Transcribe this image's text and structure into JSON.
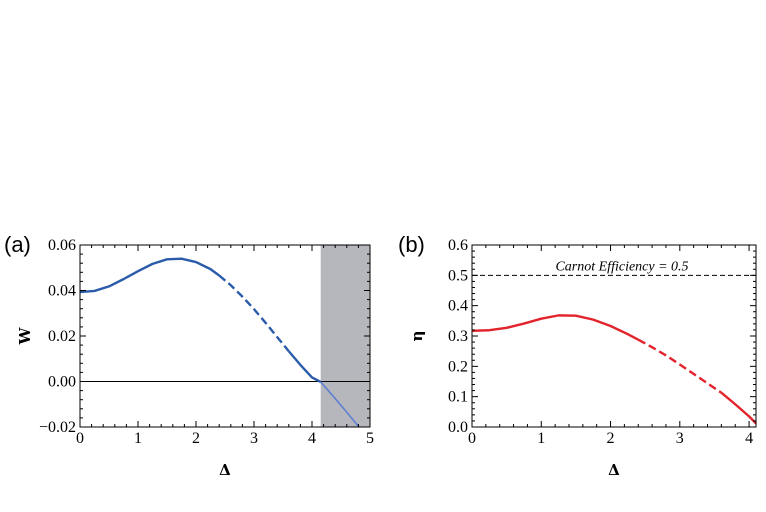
{
  "panels": {
    "a": {
      "label": "(a)"
    },
    "b": {
      "label": "(b)"
    }
  },
  "chart_data": [
    {
      "type": "line",
      "xlabel": "Δ",
      "ylabel": "W",
      "xlim": [
        0,
        5
      ],
      "ylim": [
        -0.02,
        0.06
      ],
      "xticks": [
        0,
        1,
        2,
        3,
        4,
        5
      ],
      "yticks": [
        -0.02,
        0.0,
        0.02,
        0.04,
        0.06
      ],
      "ytick_labels": [
        "−0.02",
        "0.00",
        "0.02",
        "0.04",
        "0.06"
      ],
      "grid": false,
      "color": "#2a5caa",
      "zero_line": 0.0,
      "shaded_region": {
        "x0": 4.15,
        "x1": 5.0,
        "color": "#b6b7bd"
      },
      "series": [
        {
          "style": "solid",
          "x": [
            0,
            0.25,
            0.5,
            0.75,
            1.0,
            1.25,
            1.5,
            1.75,
            2.0,
            2.25,
            2.4
          ],
          "y": [
            0.0393,
            0.0398,
            0.0418,
            0.045,
            0.0485,
            0.0517,
            0.0537,
            0.054,
            0.0525,
            0.0494,
            0.0466
          ]
        },
        {
          "style": "dashed",
          "x": [
            2.4,
            2.6,
            2.8,
            3.0,
            3.2,
            3.4,
            3.6
          ],
          "y": [
            0.0466,
            0.0423,
            0.0373,
            0.0318,
            0.0258,
            0.0195,
            0.0133
          ]
        },
        {
          "style": "solid",
          "x": [
            3.6,
            3.8,
            4.0,
            4.15
          ],
          "y": [
            0.0133,
            0.0073,
            0.0018,
            -0.0002
          ]
        },
        {
          "style": "solid-light",
          "x": [
            4.15,
            4.4,
            4.6,
            4.8
          ],
          "y": [
            -0.0002,
            -0.0075,
            -0.0135,
            -0.0197
          ]
        }
      ]
    },
    {
      "type": "line",
      "xlabel": "Δ",
      "ylabel": "η",
      "xlim": [
        0,
        4.1
      ],
      "ylim": [
        0.0,
        0.6
      ],
      "xticks": [
        0,
        1,
        2,
        3,
        4
      ],
      "yticks": [
        0.0,
        0.1,
        0.2,
        0.3,
        0.4,
        0.5,
        0.6
      ],
      "ytick_labels": [
        "0.0",
        "0.1",
        "0.2",
        "0.3",
        "0.4",
        "0.5",
        "0.6"
      ],
      "grid": false,
      "color": "#e3232c",
      "reference_line": {
        "y": 0.5,
        "label": "Carnot Efficiency = 0.5",
        "style": "dashed"
      },
      "series": [
        {
          "style": "solid",
          "x": [
            0,
            0.25,
            0.5,
            0.75,
            1.0,
            1.25,
            1.5,
            1.75,
            2.0,
            2.25,
            2.4
          ],
          "y": [
            0.317,
            0.319,
            0.327,
            0.341,
            0.357,
            0.368,
            0.367,
            0.354,
            0.333,
            0.306,
            0.288
          ]
        },
        {
          "style": "dashed",
          "x": [
            2.4,
            2.6,
            2.8,
            3.0,
            3.2,
            3.4,
            3.6
          ],
          "y": [
            0.288,
            0.263,
            0.236,
            0.206,
            0.175,
            0.144,
            0.113
          ]
        },
        {
          "style": "solid",
          "x": [
            3.6,
            3.8,
            4.0,
            4.1
          ],
          "y": [
            0.113,
            0.075,
            0.035,
            0.012
          ]
        }
      ]
    }
  ]
}
